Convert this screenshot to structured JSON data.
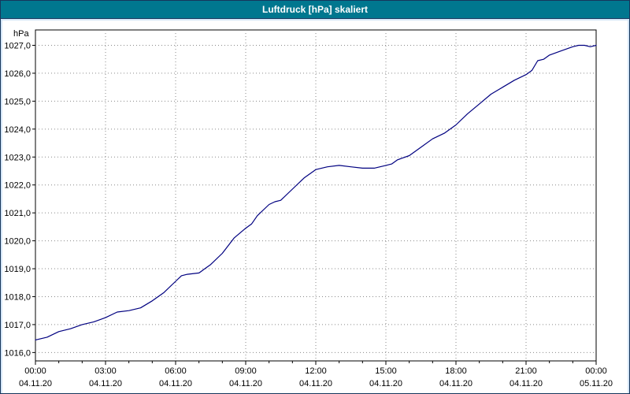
{
  "window": {
    "title": "Luftdruck [hPa] skaliert"
  },
  "colors": {
    "titlebar_bg": "#00778f",
    "titlebar_text": "#ffffff",
    "window_bg": "#d4e6f7",
    "plot_bg": "#ffffff",
    "plot_border": "#000000",
    "grid": "#8a8a8a",
    "axis_text": "#000000",
    "line": "#000080"
  },
  "chart_data": {
    "type": "line",
    "title": "Luftdruck [hPa] skaliert",
    "unit_label": "hPa",
    "grid": "dotted",
    "legend": "none",
    "ylim": [
      1015.7,
      1027.55
    ],
    "yticks": [
      1016,
      1017,
      1018,
      1019,
      1020,
      1021,
      1022,
      1023,
      1024,
      1025,
      1026,
      1027
    ],
    "ytick_labels": [
      "1016,0",
      "1017,0",
      "1018,0",
      "1019,0",
      "1020,0",
      "1021,0",
      "1022,0",
      "1023,0",
      "1024,0",
      "1025,0",
      "1026,0",
      "1027,0"
    ],
    "x_hours_range": [
      0,
      24
    ],
    "xticks": [
      {
        "hour": 0,
        "time": "00:00",
        "date": "04.11.20"
      },
      {
        "hour": 3,
        "time": "03:00",
        "date": "04.11.20"
      },
      {
        "hour": 6,
        "time": "06:00",
        "date": "04.11.20"
      },
      {
        "hour": 9,
        "time": "09:00",
        "date": "04.11.20"
      },
      {
        "hour": 12,
        "time": "12:00",
        "date": "04.11.20"
      },
      {
        "hour": 15,
        "time": "15:00",
        "date": "04.11.20"
      },
      {
        "hour": 18,
        "time": "18:00",
        "date": "04.11.20"
      },
      {
        "hour": 21,
        "time": "21:00",
        "date": "04.11.20"
      },
      {
        "hour": 24,
        "time": "00:00",
        "date": "05.11.20"
      }
    ],
    "series": [
      {
        "name": "Luftdruck",
        "color": "#000080",
        "points": [
          [
            0,
            1016.45
          ],
          [
            0.5,
            1016.55
          ],
          [
            1,
            1016.75
          ],
          [
            1.5,
            1016.85
          ],
          [
            2,
            1017.0
          ],
          [
            2.5,
            1017.1
          ],
          [
            3,
            1017.25
          ],
          [
            3.5,
            1017.45
          ],
          [
            4,
            1017.5
          ],
          [
            4.5,
            1017.6
          ],
          [
            5,
            1017.85
          ],
          [
            5.5,
            1018.15
          ],
          [
            6,
            1018.55
          ],
          [
            6.25,
            1018.75
          ],
          [
            6.5,
            1018.8
          ],
          [
            7,
            1018.85
          ],
          [
            7.25,
            1019.0
          ],
          [
            7.5,
            1019.15
          ],
          [
            8,
            1019.55
          ],
          [
            8.5,
            1020.1
          ],
          [
            9,
            1020.45
          ],
          [
            9.25,
            1020.6
          ],
          [
            9.5,
            1020.9
          ],
          [
            10,
            1021.3
          ],
          [
            10.25,
            1021.4
          ],
          [
            10.5,
            1021.45
          ],
          [
            11,
            1021.85
          ],
          [
            11.5,
            1022.25
          ],
          [
            12,
            1022.55
          ],
          [
            12.5,
            1022.65
          ],
          [
            13,
            1022.7
          ],
          [
            13.5,
            1022.65
          ],
          [
            14,
            1022.6
          ],
          [
            14.5,
            1022.6
          ],
          [
            15,
            1022.7
          ],
          [
            15.25,
            1022.75
          ],
          [
            15.5,
            1022.9
          ],
          [
            16,
            1023.05
          ],
          [
            16.5,
            1023.35
          ],
          [
            17,
            1023.65
          ],
          [
            17.5,
            1023.85
          ],
          [
            18,
            1024.15
          ],
          [
            18.5,
            1024.55
          ],
          [
            19,
            1024.9
          ],
          [
            19.5,
            1025.25
          ],
          [
            20,
            1025.5
          ],
          [
            20.5,
            1025.75
          ],
          [
            21,
            1025.95
          ],
          [
            21.25,
            1026.1
          ],
          [
            21.5,
            1026.45
          ],
          [
            21.75,
            1026.5
          ],
          [
            22,
            1026.65
          ],
          [
            22.5,
            1026.8
          ],
          [
            23,
            1026.95
          ],
          [
            23.25,
            1027.0
          ],
          [
            23.5,
            1027.0
          ],
          [
            23.75,
            1026.95
          ],
          [
            24,
            1027.0
          ]
        ]
      }
    ]
  }
}
